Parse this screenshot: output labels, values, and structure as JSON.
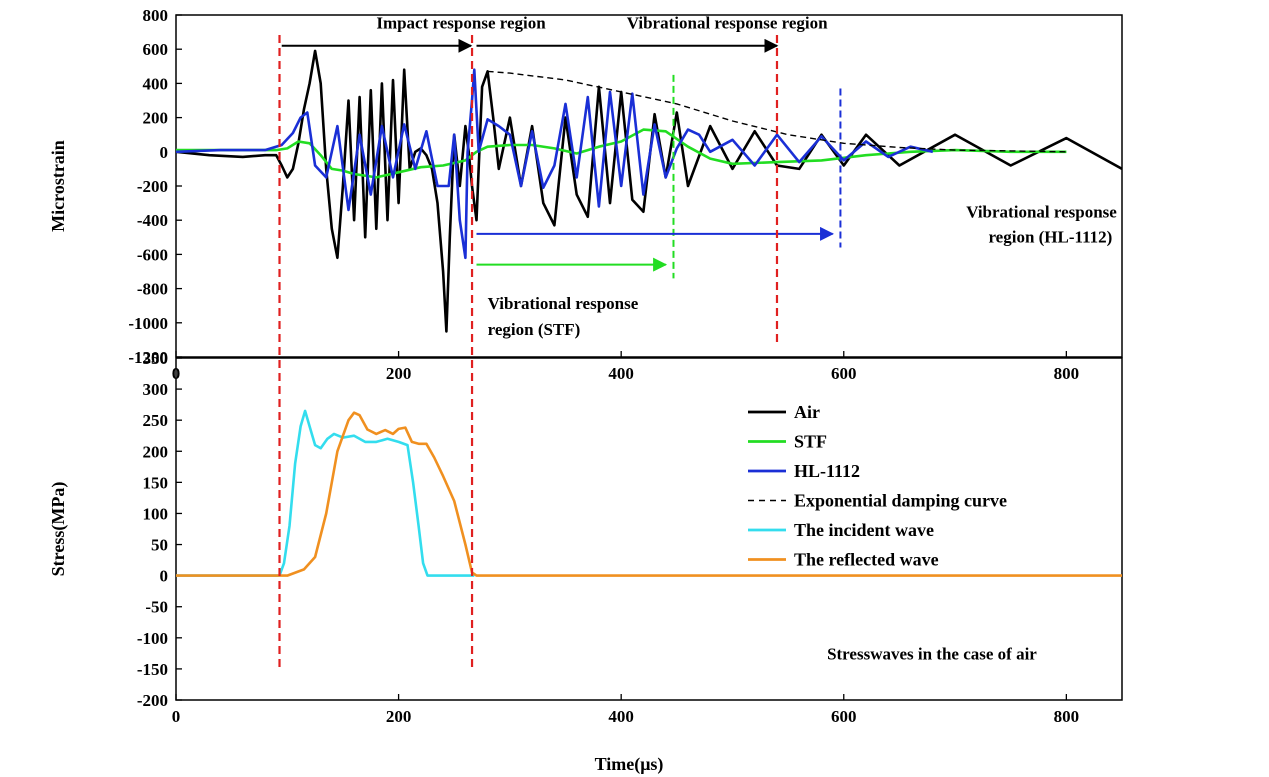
{
  "chart_data": [
    {
      "type": "line",
      "ylabel": "Microstrain",
      "xlim": [
        0,
        850
      ],
      "ylim": [
        -1200,
        800
      ],
      "yticks": [
        800,
        600,
        400,
        200,
        0,
        -200,
        -400,
        -600,
        -800,
        -1000,
        -1200
      ],
      "xticks": [
        0,
        200,
        400,
        600,
        800
      ],
      "xtick_labels": [
        "0",
        "200",
        "400",
        "600",
        "800"
      ],
      "ytick_labels": [
        "800",
        "600",
        "400",
        "200",
        "0",
        "-200",
        "-400",
        "-600",
        "-800",
        "-1000",
        "-1200"
      ],
      "series": [
        {
          "name": "Air",
          "color": "#000000",
          "x": [
            0,
            30,
            60,
            80,
            90,
            95,
            100,
            105,
            110,
            115,
            120,
            125,
            130,
            135,
            140,
            145,
            150,
            155,
            160,
            165,
            170,
            175,
            180,
            185,
            190,
            195,
            200,
            205,
            210,
            215,
            220,
            225,
            230,
            235,
            240,
            243,
            246,
            250,
            255,
            260,
            263,
            266,
            270,
            275,
            280,
            285,
            290,
            300,
            310,
            320,
            330,
            340,
            350,
            360,
            370,
            380,
            390,
            400,
            410,
            420,
            430,
            440,
            450,
            460,
            480,
            500,
            520,
            540,
            560,
            580,
            600,
            620,
            650,
            700,
            750,
            800,
            850
          ],
          "y": [
            0,
            -20,
            -30,
            -20,
            -20,
            -80,
            -150,
            -100,
            50,
            250,
            400,
            590,
            400,
            -100,
            -450,
            -620,
            -200,
            300,
            -400,
            320,
            -500,
            360,
            -450,
            400,
            -400,
            420,
            -300,
            480,
            -100,
            0,
            20,
            -20,
            -100,
            -300,
            -700,
            -1050,
            -500,
            100,
            -200,
            150,
            0,
            -200,
            -400,
            380,
            470,
            200,
            -100,
            200,
            -200,
            150,
            -300,
            -430,
            200,
            -250,
            -380,
            380,
            -300,
            350,
            -280,
            -350,
            220,
            -150,
            230,
            -200,
            150,
            -100,
            120,
            -80,
            -100,
            100,
            -80,
            100,
            -80,
            100,
            -80,
            80,
            -100
          ]
        },
        {
          "name": "STF",
          "color": "#22dd22",
          "x": [
            0,
            50,
            90,
            100,
            110,
            120,
            130,
            140,
            150,
            160,
            180,
            200,
            220,
            240,
            260,
            270,
            280,
            300,
            320,
            340,
            360,
            380,
            400,
            420,
            440,
            460,
            480,
            500,
            540,
            580,
            620,
            660,
            700,
            750,
            800
          ],
          "y": [
            10,
            10,
            10,
            20,
            60,
            50,
            -20,
            -100,
            -110,
            -130,
            -150,
            -120,
            -90,
            -80,
            -50,
            0,
            30,
            40,
            40,
            20,
            -10,
            30,
            60,
            130,
            120,
            30,
            -40,
            -70,
            -60,
            -50,
            -20,
            0,
            10,
            0,
            0
          ]
        },
        {
          "name": "HL-1112",
          "color": "#1a2fd6",
          "x": [
            0,
            40,
            80,
            95,
            105,
            112,
            118,
            125,
            135,
            145,
            155,
            165,
            175,
            185,
            195,
            205,
            215,
            225,
            235,
            245,
            250,
            255,
            260,
            262,
            266,
            268,
            272,
            280,
            290,
            300,
            310,
            320,
            330,
            340,
            350,
            360,
            370,
            380,
            390,
            400,
            410,
            420,
            430,
            440,
            450,
            460,
            470,
            480,
            500,
            520,
            540,
            560,
            580,
            600,
            620,
            640,
            660,
            680
          ],
          "y": [
            0,
            10,
            10,
            40,
            110,
            200,
            230,
            -80,
            -150,
            150,
            -340,
            100,
            -250,
            150,
            -150,
            160,
            -100,
            120,
            -200,
            -200,
            100,
            -400,
            -620,
            0,
            300,
            480,
            0,
            190,
            150,
            100,
            -200,
            120,
            -210,
            -80,
            280,
            -150,
            320,
            -320,
            350,
            -200,
            340,
            -250,
            160,
            -150,
            20,
            130,
            100,
            0,
            70,
            -80,
            100,
            -60,
            90,
            -50,
            60,
            -30,
            30,
            0
          ]
        },
        {
          "name": "Exponential damping curve",
          "color": "#000000",
          "dashed": true,
          "x": [
            280,
            300,
            350,
            400,
            450,
            500,
            550,
            600,
            650,
            700,
            750,
            800
          ],
          "y": [
            470,
            460,
            420,
            350,
            280,
            180,
            100,
            50,
            25,
            10,
            5,
            0
          ]
        }
      ],
      "annotations": [
        {
          "text": "Impact response region",
          "x": 180,
          "y": 720
        },
        {
          "text": "Vibrational response region",
          "x": 405,
          "y": 720
        },
        {
          "text": "Vibrational response",
          "x": 710,
          "y": -385
        },
        {
          "text": "region (HL-1112)",
          "x": 730,
          "y": -530
        },
        {
          "text": "Vibrational response",
          "x": 280,
          "y": -920
        },
        {
          "text": "region (STF)",
          "x": 280,
          "y": -1070
        }
      ],
      "arrows": [
        {
          "x1": 95,
          "x2": 265,
          "y": 620,
          "color": "#000000"
        },
        {
          "x1": 270,
          "x2": 540,
          "y": 620,
          "color": "#000000"
        },
        {
          "x1": 270,
          "x2": 590,
          "y": -480,
          "color": "#1a2fd6"
        },
        {
          "x1": 270,
          "x2": 440,
          "y": -660,
          "color": "#22dd22"
        }
      ],
      "vlines": [
        {
          "x": 447,
          "y1": 450,
          "y2": -740,
          "color": "#22dd22"
        },
        {
          "x": 597,
          "y1": 370,
          "y2": -560,
          "color": "#1a2fd6"
        }
      ]
    },
    {
      "type": "line",
      "ylabel": "Stress(MPa)",
      "xlabel": "Time(μs)",
      "xlim": [
        0,
        850
      ],
      "ylim": [
        -200,
        350
      ],
      "yticks": [
        350,
        300,
        250,
        200,
        150,
        100,
        50,
        0,
        -50,
        -100,
        -150,
        -200
      ],
      "xticks": [
        0,
        200,
        400,
        600,
        800
      ],
      "xtick_labels": [
        "0",
        "200",
        "400",
        "600",
        "800"
      ],
      "ytick_labels": [
        "350",
        "300",
        "250",
        "200",
        "150",
        "100",
        "50",
        "0",
        "-50",
        "-100",
        "-150",
        "-200"
      ],
      "series": [
        {
          "name": "The incident wave",
          "color": "#33ddee",
          "x": [
            0,
            93,
            97,
            102,
            107,
            112,
            116,
            120,
            125,
            130,
            136,
            142,
            150,
            160,
            170,
            180,
            190,
            200,
            208,
            213,
            218,
            222,
            226,
            230,
            240,
            250,
            268
          ],
          "y": [
            0,
            0,
            20,
            80,
            180,
            240,
            265,
            240,
            210,
            205,
            220,
            228,
            222,
            225,
            215,
            215,
            220,
            215,
            210,
            150,
            80,
            20,
            0,
            0,
            0,
            0,
            0
          ]
        },
        {
          "name": "The reflected wave",
          "color": "#f09020",
          "x": [
            0,
            100,
            115,
            125,
            135,
            145,
            155,
            160,
            165,
            172,
            180,
            188,
            195,
            200,
            206,
            212,
            218,
            225,
            232,
            240,
            250,
            260,
            266,
            270,
            300,
            400,
            500,
            600,
            700,
            800,
            850
          ],
          "y": [
            0,
            0,
            10,
            30,
            100,
            200,
            250,
            262,
            258,
            235,
            228,
            234,
            228,
            236,
            238,
            215,
            212,
            212,
            190,
            160,
            120,
            50,
            5,
            0,
            0,
            0,
            0,
            0,
            0,
            0,
            0
          ]
        }
      ],
      "annotations": [
        {
          "text": "Stresswaves in the case of air",
          "x": 585,
          "y": -135
        }
      ],
      "legend": {
        "placement": "right",
        "entries": [
          {
            "label": "Air",
            "color": "#000000"
          },
          {
            "label": "STF",
            "color": "#22dd22"
          },
          {
            "label": "HL-1112",
            "color": "#1a2fd6"
          },
          {
            "label": "Exponential damping curve",
            "color": "#000000",
            "dashed": true
          },
          {
            "label": "The incident wave",
            "color": "#33ddee"
          },
          {
            "label": "The reflected wave",
            "color": "#f09020"
          }
        ]
      }
    }
  ],
  "region_lines": [
    {
      "x": 93,
      "color": "#e02020"
    },
    {
      "x": 266,
      "color": "#e02020"
    },
    {
      "x": 540,
      "color": "#e02020",
      "panel": "top"
    }
  ]
}
